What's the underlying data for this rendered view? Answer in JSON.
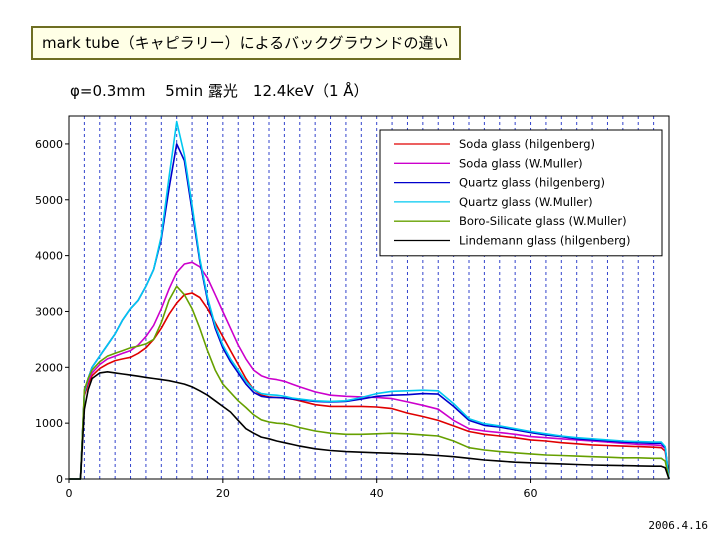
{
  "title": "mark tube（キャピラリー）によるバックグラウンドの違い",
  "subtitle": "φ=0.3mm　 5min 露光　12.4keV（1 Å）",
  "date": "2006.4.16",
  "chart_data": {
    "type": "line",
    "title": "mark tube（キャピラリー）によるバックグラウンドの違い",
    "xlabel": "",
    "ylabel": "",
    "xlim": [
      0,
      78
    ],
    "ylim": [
      0,
      6500
    ],
    "xticks": [
      0,
      20,
      40,
      60
    ],
    "yticks": [
      0,
      1000,
      2000,
      3000,
      4000,
      5000,
      6000
    ],
    "grid": "vertical dashed lines",
    "legend_position": "top-right",
    "x": [
      0,
      1.5,
      2,
      2.5,
      3,
      4,
      5,
      6,
      7,
      8,
      9,
      10,
      11,
      12,
      13,
      14,
      15,
      16,
      17,
      18,
      19,
      20,
      21,
      22,
      23,
      24,
      25,
      26,
      27,
      28,
      29,
      30,
      32,
      34,
      36,
      38,
      40,
      42,
      44,
      46,
      48,
      50,
      52,
      54,
      56,
      58,
      60,
      62,
      64,
      66,
      68,
      70,
      72,
      74,
      76,
      77,
      77.5,
      78
    ],
    "series": [
      {
        "name": "Soda glass (hilgenberg)",
        "color": "#e00000",
        "values": [
          0,
          0,
          1500,
          1700,
          1850,
          1980,
          2060,
          2120,
          2150,
          2180,
          2250,
          2350,
          2500,
          2700,
          2950,
          3150,
          3300,
          3330,
          3250,
          3050,
          2800,
          2550,
          2300,
          2050,
          1800,
          1600,
          1500,
          1470,
          1460,
          1450,
          1430,
          1400,
          1330,
          1300,
          1300,
          1300,
          1290,
          1260,
          1180,
          1120,
          1050,
          950,
          850,
          800,
          770,
          740,
          700,
          680,
          650,
          630,
          610,
          600,
          590,
          580,
          570,
          560,
          500,
          0
        ]
      },
      {
        "name": "Soda glass (W.Muller)",
        "color": "#cc00cc",
        "values": [
          0,
          0,
          1550,
          1750,
          1900,
          2050,
          2150,
          2200,
          2250,
          2300,
          2400,
          2550,
          2750,
          3050,
          3400,
          3700,
          3850,
          3880,
          3800,
          3600,
          3300,
          3000,
          2700,
          2400,
          2150,
          1950,
          1850,
          1800,
          1780,
          1750,
          1700,
          1650,
          1560,
          1500,
          1480,
          1470,
          1460,
          1440,
          1380,
          1320,
          1250,
          1050,
          900,
          860,
          830,
          800,
          760,
          740,
          720,
          700,
          680,
          660,
          640,
          620,
          610,
          600,
          550,
          0
        ]
      },
      {
        "name": "Quartz glass (hilgenberg)",
        "color": "#0000cc",
        "values": [
          0,
          0,
          1550,
          1800,
          2000,
          2200,
          2400,
          2600,
          2850,
          3050,
          3200,
          3450,
          3750,
          4300,
          5200,
          6000,
          5700,
          4800,
          3900,
          3200,
          2700,
          2350,
          2100,
          1900,
          1700,
          1550,
          1480,
          1460,
          1460,
          1450,
          1430,
          1420,
          1390,
          1380,
          1390,
          1430,
          1480,
          1500,
          1510,
          1530,
          1520,
          1300,
          1050,
          960,
          930,
          880,
          830,
          790,
          760,
          720,
          700,
          680,
          660,
          650,
          640,
          640,
          560,
          0
        ]
      },
      {
        "name": "Quartz glass (W.Muller)",
        "color": "#00c8f0",
        "values": [
          0,
          0,
          1550,
          1800,
          2000,
          2200,
          2400,
          2600,
          2850,
          3050,
          3200,
          3450,
          3750,
          4350,
          5400,
          6400,
          5800,
          4900,
          3950,
          3250,
          2750,
          2400,
          2150,
          1950,
          1750,
          1600,
          1530,
          1510,
          1500,
          1480,
          1450,
          1430,
          1400,
          1390,
          1400,
          1460,
          1530,
          1570,
          1580,
          1590,
          1580,
          1350,
          1080,
          990,
          950,
          900,
          850,
          810,
          770,
          740,
          720,
          700,
          680,
          670,
          660,
          660,
          580,
          0
        ]
      },
      {
        "name": "Boro-Silicate glass (W.Muller)",
        "color": "#66a000",
        "values": [
          0,
          0,
          1600,
          1800,
          1950,
          2100,
          2200,
          2250,
          2300,
          2350,
          2380,
          2420,
          2500,
          2800,
          3200,
          3450,
          3300,
          3050,
          2700,
          2300,
          1950,
          1700,
          1550,
          1400,
          1280,
          1150,
          1060,
          1020,
          1000,
          990,
          960,
          920,
          860,
          820,
          800,
          800,
          810,
          820,
          810,
          790,
          770,
          680,
          560,
          520,
          490,
          470,
          450,
          430,
          420,
          410,
          400,
          390,
          380,
          380,
          370,
          370,
          320,
          0
        ]
      },
      {
        "name": "Lindemann glass (hilgenberg)",
        "color": "#000000",
        "values": [
          0,
          0,
          1250,
          1600,
          1800,
          1900,
          1920,
          1900,
          1880,
          1860,
          1840,
          1820,
          1800,
          1780,
          1760,
          1730,
          1700,
          1650,
          1580,
          1500,
          1400,
          1300,
          1200,
          1050,
          900,
          820,
          750,
          720,
          680,
          650,
          620,
          590,
          540,
          510,
          490,
          480,
          470,
          460,
          450,
          440,
          420,
          400,
          370,
          340,
          320,
          300,
          290,
          280,
          270,
          260,
          250,
          245,
          240,
          235,
          230,
          230,
          200,
          0
        ]
      }
    ]
  }
}
